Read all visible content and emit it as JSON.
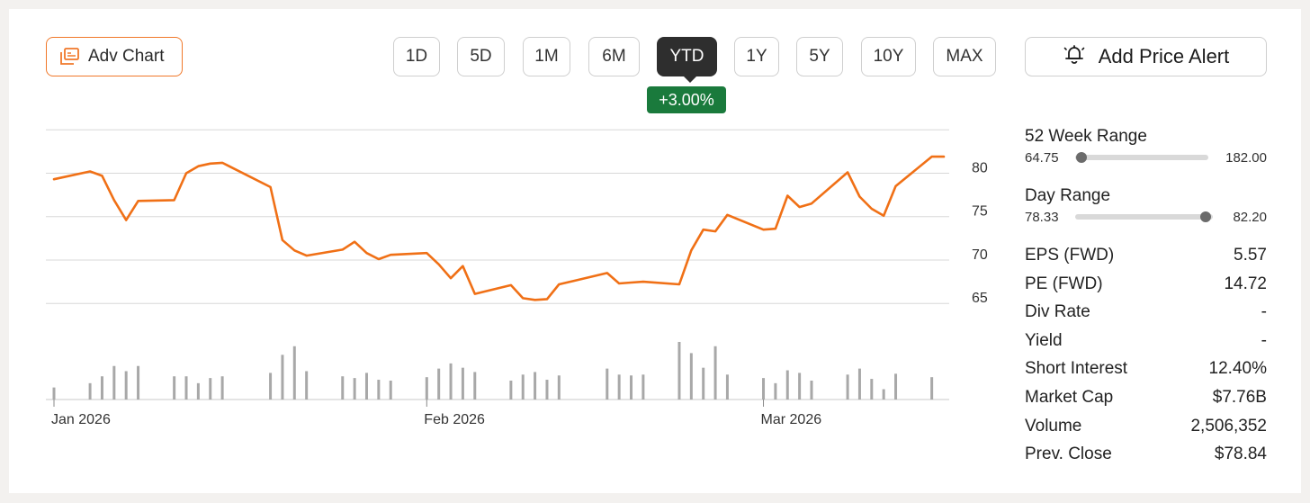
{
  "toolbar": {
    "adv_chart_label": "Adv Chart",
    "ranges": [
      "1D",
      "5D",
      "1M",
      "6M",
      "YTD",
      "1Y",
      "5Y",
      "10Y",
      "MAX"
    ],
    "active_range": "YTD",
    "change_badge": "+3.00%",
    "alert_label": "Add Price Alert"
  },
  "stats": {
    "week52": {
      "label": "52 Week Range",
      "low": "64.75",
      "high": "182.00",
      "position": 0.05
    },
    "day": {
      "label": "Day Range",
      "low": "78.33",
      "high": "82.20",
      "position": 0.95
    },
    "rows": [
      {
        "label": "EPS (FWD)",
        "value": "5.57"
      },
      {
        "label": "PE (FWD)",
        "value": "14.72"
      },
      {
        "label": "Div Rate",
        "value": "-"
      },
      {
        "label": "Yield",
        "value": "-"
      },
      {
        "label": "Short Interest",
        "value": "12.40%"
      },
      {
        "label": "Market Cap",
        "value": "$7.76B"
      },
      {
        "label": "Volume",
        "value": "2,506,352"
      },
      {
        "label": "Prev. Close",
        "value": "$78.84"
      }
    ]
  },
  "colors": {
    "line": "#f07016",
    "volume": "#a8a8a8",
    "grid": "#d8d8d8",
    "accent": "#f0782a",
    "badge": "#1a7a3c"
  },
  "chart_data": {
    "type": "line",
    "x_tick_labels": [
      "Jan 2026",
      "Feb 2026",
      "Mar 2026"
    ],
    "x_ticks": [
      "2026-01-02",
      "2026-02-02",
      "2026-03-02"
    ],
    "y_tick_labels": [
      "80",
      "75",
      "70",
      "65"
    ],
    "y_ticks": [
      80,
      75,
      70,
      65
    ],
    "ylim": [
      61.6,
      84.4
    ],
    "grid": true,
    "price": {
      "dates": [
        "2026-01-02",
        "2026-01-05",
        "2026-01-06",
        "2026-01-07",
        "2026-01-08",
        "2026-01-09",
        "2026-01-12",
        "2026-01-13",
        "2026-01-14",
        "2026-01-15",
        "2026-01-16",
        "2026-01-20",
        "2026-01-21",
        "2026-01-22",
        "2026-01-23",
        "2026-01-26",
        "2026-01-27",
        "2026-01-28",
        "2026-01-29",
        "2026-01-30",
        "2026-02-02",
        "2026-02-03",
        "2026-02-04",
        "2026-02-05",
        "2026-02-06",
        "2026-02-09",
        "2026-02-10",
        "2026-02-11",
        "2026-02-12",
        "2026-02-13",
        "2026-02-17",
        "2026-02-18",
        "2026-02-19",
        "2026-02-20",
        "2026-02-23",
        "2026-02-24",
        "2026-02-25",
        "2026-02-26",
        "2026-02-27",
        "2026-03-02",
        "2026-03-03",
        "2026-03-04",
        "2026-03-05",
        "2026-03-06",
        "2026-03-09",
        "2026-03-10",
        "2026-03-11",
        "2026-03-12",
        "2026-03-13",
        "2026-03-16",
        "2026-03-17"
      ],
      "values": [
        79.3,
        80.2,
        79.7,
        76.9,
        74.6,
        76.8,
        76.9,
        80.0,
        80.8,
        81.1,
        81.2,
        78.4,
        72.3,
        71.1,
        70.5,
        71.2,
        72.1,
        70.8,
        70.1,
        70.6,
        70.8,
        69.5,
        67.9,
        69.3,
        66.1,
        67.1,
        65.6,
        65.4,
        65.5,
        67.2,
        68.5,
        67.3,
        67.4,
        67.5,
        67.2,
        71.1,
        73.5,
        73.3,
        75.2,
        73.5,
        73.6,
        77.4,
        76.1,
        76.5,
        80.1,
        77.3,
        75.9,
        75.1,
        78.5,
        81.9,
        81.9
      ]
    },
    "volume": {
      "dates": [
        "2026-01-02",
        "2026-01-05",
        "2026-01-06",
        "2026-01-07",
        "2026-01-08",
        "2026-01-09",
        "2026-01-12",
        "2026-01-13",
        "2026-01-14",
        "2026-01-15",
        "2026-01-16",
        "2026-01-20",
        "2026-01-21",
        "2026-01-22",
        "2026-01-23",
        "2026-01-26",
        "2026-01-27",
        "2026-01-28",
        "2026-01-29",
        "2026-01-30",
        "2026-02-02",
        "2026-02-03",
        "2026-02-04",
        "2026-02-05",
        "2026-02-06",
        "2026-02-09",
        "2026-02-10",
        "2026-02-11",
        "2026-02-12",
        "2026-02-13",
        "2026-02-17",
        "2026-02-18",
        "2026-02-19",
        "2026-02-20",
        "2026-02-23",
        "2026-02-24",
        "2026-02-25",
        "2026-02-26",
        "2026-02-27",
        "2026-03-02",
        "2026-03-03",
        "2026-03-04",
        "2026-03-05",
        "2026-03-06",
        "2026-03-09",
        "2026-03-10",
        "2026-03-11",
        "2026-03-12",
        "2026-03-13",
        "2026-03-16"
      ],
      "values": [
        14,
        19,
        27,
        39,
        33,
        39,
        27,
        27,
        19,
        25,
        27,
        31,
        52,
        62,
        33,
        27,
        25,
        31,
        23,
        22,
        26,
        36,
        42,
        37,
        32,
        22,
        29,
        32,
        23,
        28,
        36,
        29,
        28,
        29,
        67,
        54,
        37,
        62,
        29,
        25,
        19,
        34,
        31,
        22,
        29,
        36,
        24,
        12,
        30,
        26
      ]
    }
  }
}
